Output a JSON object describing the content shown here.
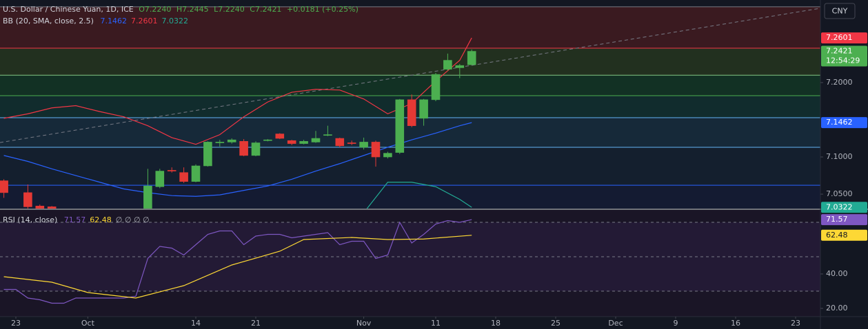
{
  "chart_data": [
    {
      "type": "candlestick",
      "title": "U.S. Dollar / Chinese Yuan, 1D, ICE",
      "legend_values": [
        "O7.2240",
        "H7.2445",
        "L7.2240",
        "C7.2421",
        "+0.0181 (+0.25%)"
      ],
      "indicator": "BB (20, SMA, close, 2.5)",
      "currency": "CNY",
      "countdown": "12:54:29",
      "up_color": "#4caf50",
      "down_color": "#e53935",
      "x": [
        -1,
        1,
        2,
        3,
        11,
        12,
        13,
        14,
        15,
        16,
        17,
        18,
        19,
        20,
        21,
        22,
        23,
        24,
        25,
        26,
        27,
        28,
        29,
        30,
        31,
        32,
        33,
        34,
        35,
        36,
        37,
        38
      ],
      "open": [
        7.068,
        7.052,
        7.034,
        7.033,
        7.02,
        7.06,
        7.082,
        7.079,
        7.067,
        7.088,
        7.119,
        7.12,
        7.121,
        7.102,
        7.122,
        7.131,
        7.122,
        7.118,
        7.12,
        7.129,
        7.125,
        7.119,
        7.113,
        7.12,
        7.1,
        7.106,
        7.177,
        7.152,
        7.177,
        7.218,
        7.22,
        7.224
      ],
      "high": [
        7.07,
        7.063,
        7.036,
        7.034,
        7.084,
        7.084,
        7.086,
        7.086,
        7.09,
        7.121,
        7.123,
        7.125,
        7.124,
        7.121,
        7.124,
        7.132,
        7.123,
        7.123,
        7.135,
        7.142,
        7.126,
        7.122,
        7.126,
        7.122,
        7.107,
        7.178,
        7.184,
        7.178,
        7.213,
        7.239,
        7.225,
        7.2445
      ],
      "low": [
        7.045,
        7.03,
        7.02,
        7.015,
        7.015,
        7.058,
        7.079,
        7.065,
        7.066,
        7.087,
        7.114,
        7.118,
        7.101,
        7.101,
        7.121,
        7.124,
        7.116,
        7.117,
        7.119,
        7.128,
        7.113,
        7.116,
        7.11,
        7.087,
        7.098,
        7.104,
        7.14,
        7.142,
        7.175,
        7.216,
        7.206,
        7.224
      ],
      "close": [
        7.052,
        7.033,
        7.025,
        7.02,
        7.061,
        7.081,
        7.081,
        7.067,
        7.088,
        7.12,
        7.12,
        7.123,
        7.102,
        7.119,
        7.123,
        7.125,
        7.118,
        7.121,
        7.125,
        7.13,
        7.115,
        7.118,
        7.12,
        7.1,
        7.105,
        7.177,
        7.142,
        7.177,
        7.211,
        7.23,
        7.223,
        7.2421
      ],
      "lines": [
        {
          "color": "#2962ff",
          "x": [
            -1,
            1,
            3,
            5,
            7,
            9,
            11,
            13,
            15,
            17,
            19,
            21,
            23,
            25,
            27,
            29,
            31,
            33,
            35,
            37,
            38
          ],
          "values": [
            7.102,
            7.094,
            7.084,
            7.075,
            7.066,
            7.057,
            7.052,
            7.048,
            7.047,
            7.049,
            7.055,
            7.061,
            7.07,
            7.081,
            7.091,
            7.102,
            7.113,
            7.123,
            7.132,
            7.142,
            7.1462
          ]
        },
        {
          "color": "#f23645",
          "x": [
            -1,
            1,
            3,
            5,
            7,
            9,
            11,
            13,
            15,
            17,
            19,
            21,
            23,
            25,
            27,
            29,
            31,
            33,
            35,
            37,
            38
          ],
          "values": [
            7.152,
            7.158,
            7.166,
            7.169,
            7.161,
            7.154,
            7.142,
            7.126,
            7.117,
            7.13,
            7.154,
            7.174,
            7.187,
            7.191,
            7.19,
            7.178,
            7.158,
            7.172,
            7.202,
            7.23,
            7.2601
          ]
        },
        {
          "color": "#22ab94",
          "x": [
            -1,
            1,
            3,
            5,
            7,
            9,
            11,
            13,
            15,
            17,
            19,
            21,
            23,
            25,
            27,
            29,
            31,
            33,
            35,
            37,
            38
          ],
          "values": [
            null,
            null,
            null,
            null,
            null,
            null,
            null,
            null,
            null,
            null,
            null,
            null,
            null,
            null,
            null,
            7.025,
            7.066,
            7.066,
            7.06,
            7.043,
            7.0322
          ]
        }
      ],
      "trend_line": {
        "x": [
          -1.322,
          67.07
        ],
        "values": [
          7.1194,
          7.3
        ],
        "color": "#787b86"
      },
      "levels": {
        "values": [
          7.302,
          7.2463,
          7.21,
          7.1824,
          7.1528,
          7.113,
          7.062
        ],
        "colors": [
          "#787b86",
          "#f23645",
          "#81c784",
          "#4caf50",
          "#64b5f6",
          "#64b5f6",
          "#2962ff"
        ],
        "band_colors": [
          "#3a1a20",
          "#22301f",
          "#123124",
          "#112c2d",
          "#162939",
          "#141f2e",
          "#141b32"
        ]
      },
      "xlim": [
        -1.322,
        67.07
      ],
      "ylim": [
        7.0306,
        7.3111
      ],
      "yticks": [
        {
          "value": 7.05,
          "label": "7.0500"
        },
        {
          "value": 7.1,
          "label": "7.1000"
        },
        {
          "value": 7.2,
          "label": "7.2000"
        }
      ],
      "xticks": [
        {
          "value": 0,
          "label": "23"
        },
        {
          "value": 6,
          "label": "Oct"
        },
        {
          "value": 15,
          "label": "14"
        },
        {
          "value": 20,
          "label": "21"
        },
        {
          "value": 29,
          "label": "Nov"
        },
        {
          "value": 35,
          "label": "11"
        },
        {
          "value": 40,
          "label": "18"
        },
        {
          "value": 45,
          "label": "25"
        },
        {
          "value": 50,
          "label": "Dec"
        },
        {
          "value": 55,
          "label": "9"
        },
        {
          "value": 60,
          "label": "16"
        },
        {
          "value": 65,
          "label": "23"
        }
      ]
    },
    {
      "type": "rsi",
      "title": "RSI (14, close)",
      "symbols": "∅ ∅ ∅ ∅",
      "background": "#1a1526",
      "band_color": "#231a35",
      "levels": [
        70,
        50,
        30
      ],
      "series": [
        {
          "color": "#7e57c2",
          "x": [
            -1,
            0,
            1,
            2,
            3,
            4,
            5,
            6,
            7,
            8,
            9,
            10,
            11,
            12,
            13,
            14,
            15,
            16,
            17,
            18,
            19,
            20,
            21,
            22,
            23,
            24,
            25,
            26,
            27,
            28,
            29,
            30,
            31,
            32,
            33,
            34,
            35,
            36,
            37,
            38
          ],
          "values": [
            31,
            31,
            26,
            25,
            23,
            23,
            26,
            26,
            26,
            26,
            26,
            27,
            49,
            56,
            55,
            51,
            57,
            63,
            65,
            65,
            57,
            62,
            63,
            63,
            61,
            62,
            63,
            64,
            57,
            59,
            59,
            49,
            51,
            70,
            58,
            63,
            69,
            71,
            70,
            71.57
          ]
        },
        {
          "color": "#fdd835",
          "x": [
            -1,
            3,
            6,
            10,
            14,
            18,
            22,
            24,
            28,
            31,
            34,
            38
          ],
          "values": [
            38.4,
            35.2,
            29.2,
            26.0,
            33.2,
            45.2,
            53.2,
            60.0,
            61.2,
            60.0,
            60.3,
            62.48
          ]
        }
      ],
      "ylim": [
        15.2,
        77.2
      ],
      "yticks": [
        {
          "value": 20,
          "label": "20.00"
        },
        {
          "value": 40,
          "label": "40.00"
        }
      ]
    }
  ]
}
